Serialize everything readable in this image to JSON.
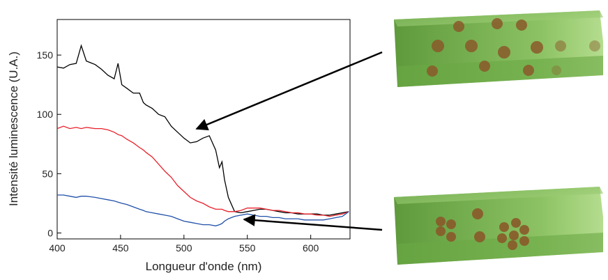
{
  "chart_data": {
    "type": "line",
    "x_label": "Longueur d'onde (nm)",
    "y_label": "Intensité luminescence (U.A.)",
    "x": [
      400,
      405,
      410,
      415,
      419,
      423,
      430,
      435,
      440,
      445,
      448,
      451,
      455,
      460,
      465,
      468,
      470,
      475,
      480,
      485,
      490,
      495,
      500,
      505,
      510,
      515,
      520,
      525,
      528,
      530,
      532,
      535,
      540,
      545,
      550,
      555,
      560,
      565,
      570,
      575,
      580,
      585,
      590,
      595,
      600,
      605,
      610,
      615,
      620,
      625,
      630
    ],
    "series": [
      {
        "color": "#000000",
        "values": [
          140,
          139,
          142,
          143,
          158,
          145,
          142,
          138,
          133,
          130,
          143,
          125,
          122,
          118,
          118,
          110,
          108,
          105,
          100,
          98,
          90,
          85,
          80,
          76,
          77,
          80,
          82,
          70,
          55,
          60,
          45,
          30,
          18,
          17,
          18,
          19,
          20,
          20,
          19,
          18,
          17,
          17,
          16,
          16,
          16,
          16,
          15,
          15,
          16,
          17,
          18
        ]
      },
      {
        "color": "#e8202a",
        "values": [
          88,
          90,
          88,
          89,
          88,
          89,
          88,
          88,
          87,
          85,
          83,
          82,
          79,
          76,
          72,
          70,
          68,
          64,
          58,
          52,
          47,
          40,
          35,
          30,
          27,
          25,
          22,
          20,
          20,
          20,
          19,
          18,
          18,
          19,
          21,
          21,
          21,
          20,
          19,
          19,
          18,
          17,
          17,
          16,
          16,
          15,
          15,
          14,
          15,
          16,
          18
        ]
      },
      {
        "color": "#2050a8",
        "values": [
          32,
          32,
          31,
          30,
          31,
          31,
          30,
          29,
          28,
          27,
          26,
          25,
          24,
          22,
          20,
          19,
          18,
          17,
          16,
          15,
          14,
          12,
          10,
          9,
          8,
          7,
          7,
          6,
          7,
          8,
          10,
          12,
          14,
          15,
          16,
          15,
          14,
          14,
          13,
          13,
          12,
          12,
          12,
          11,
          11,
          11,
          11,
          12,
          13,
          14,
          18
        ]
      }
    ],
    "xlim": [
      400,
      631
    ],
    "ylim": [
      -5,
      180
    ],
    "xticks": [
      400,
      450,
      500,
      550,
      600
    ],
    "yticks": [
      0,
      50,
      100,
      150
    ]
  }
}
